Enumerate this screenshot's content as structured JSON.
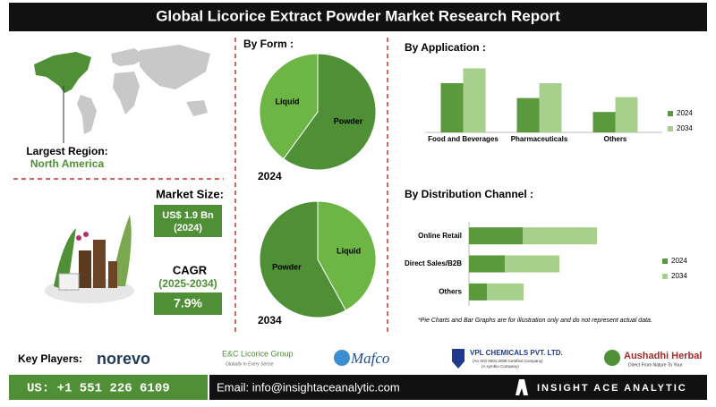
{
  "header": {
    "title": "Global Licorice Extract Powder Market Research Report"
  },
  "region": {
    "label": "Largest Region:",
    "value": "North America"
  },
  "market": {
    "size_label": "Market Size:",
    "size_value": "US$ 1.9 Bn",
    "size_year": "(2024)",
    "cagr_label": "CAGR",
    "cagr_period": "(2025-2034)",
    "cagr_value": "7.9%"
  },
  "chart_data": [
    {
      "type": "pie",
      "title": "By Form :",
      "subtitle": "2024",
      "categories": [
        "Powder",
        "Liquid"
      ],
      "values": [
        60,
        40
      ],
      "colors": [
        "#4f8f35",
        "#6db544"
      ]
    },
    {
      "type": "pie",
      "subtitle": "2034",
      "categories": [
        "Liquid",
        "Powder"
      ],
      "values": [
        42,
        58
      ],
      "colors": [
        "#6db544",
        "#4f8f35"
      ]
    },
    {
      "type": "bar",
      "title": "By Application :",
      "categories": [
        "Food and Beverages",
        "Pharmaceuticals",
        "Others"
      ],
      "ylim": [
        0,
        80
      ],
      "series": [
        {
          "name": "2024",
          "color": "#5a9a3c",
          "values": [
            53,
            37,
            22
          ]
        },
        {
          "name": "2034",
          "color": "#a8d08d",
          "values": [
            69,
            53,
            38
          ]
        }
      ]
    },
    {
      "type": "stacked-hbar",
      "title": "By Distribution Channel :",
      "categories": [
        "Online Retail",
        "Direct Sales/B2B",
        "Others"
      ],
      "xlim": [
        0,
        160
      ],
      "series": [
        {
          "name": "2024",
          "color": "#5a9a3c",
          "values": [
            60,
            40,
            20
          ]
        },
        {
          "name": "2034",
          "color": "#a8d08d",
          "values": [
            83,
            61,
            41
          ]
        }
      ]
    }
  ],
  "note": "*Pie Charts and Bar Graphs are for illustration only and do not represent actual data.",
  "key_players": {
    "label": "Key Players:",
    "players": [
      {
        "name": "norevo"
      },
      {
        "name": "E&C Licorice Group",
        "tagline": "Globally In Every Sense"
      },
      {
        "name": "Mafco"
      },
      {
        "name": "VPL CHEMICALS PVT. LTD.",
        "tagline": "(An ISO 9001:2008 Certified Company)",
        "tagline2": "(A symbio Company)"
      },
      {
        "name": "Aushadhi Herbal",
        "tagline": "Direct From Nature To Your"
      }
    ]
  },
  "footer": {
    "phone": "US: +1 551 226 6109",
    "email": "Email: info@insightaceanalytic.com",
    "brand": "INSIGHT ACE ANALYTIC"
  }
}
